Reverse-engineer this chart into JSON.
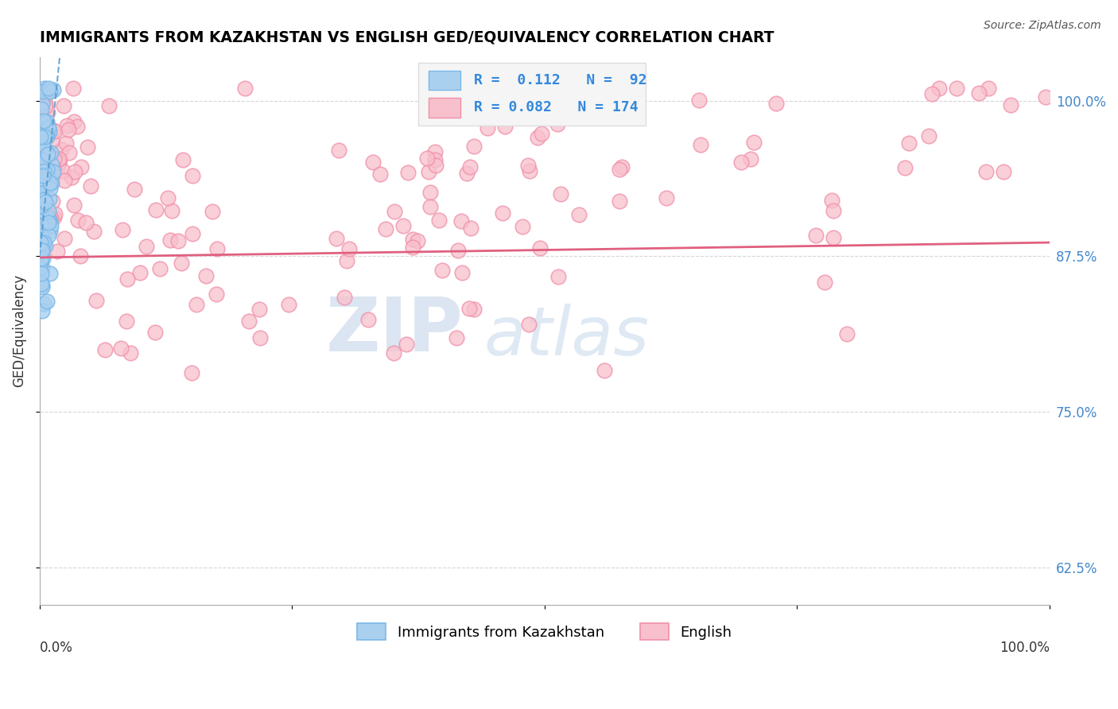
{
  "title": "IMMIGRANTS FROM KAZAKHSTAN VS ENGLISH GED/EQUIVALENCY CORRELATION CHART",
  "source_text": "Source: ZipAtlas.com",
  "ylabel": "GED/Equivalency",
  "ytick_labels": [
    "62.5%",
    "75.0%",
    "87.5%",
    "100.0%"
  ],
  "ytick_values": [
    0.625,
    0.75,
    0.875,
    1.0
  ],
  "legend_blue_R": "0.112",
  "legend_blue_N": "92",
  "legend_pink_R": "0.082",
  "legend_pink_N": "174",
  "legend_label_blue": "Immigrants from Kazakhstan",
  "legend_label_pink": "English",
  "blue_color": "#7ab8e8",
  "blue_fill_color": "#aad0f0",
  "pink_color": "#f090aa",
  "pink_fill_color": "#f8c0cc",
  "blue_line_color": "#5599cc",
  "pink_line_color": "#e06080",
  "watermark_zip": "ZIP",
  "watermark_atlas": "atlas",
  "watermark_color": "#c8d8ee",
  "background_color": "#ffffff",
  "grid_color": "#cccccc",
  "ylim_min": 0.595,
  "ylim_max": 1.035,
  "xlim_min": 0.0,
  "xlim_max": 1.0
}
